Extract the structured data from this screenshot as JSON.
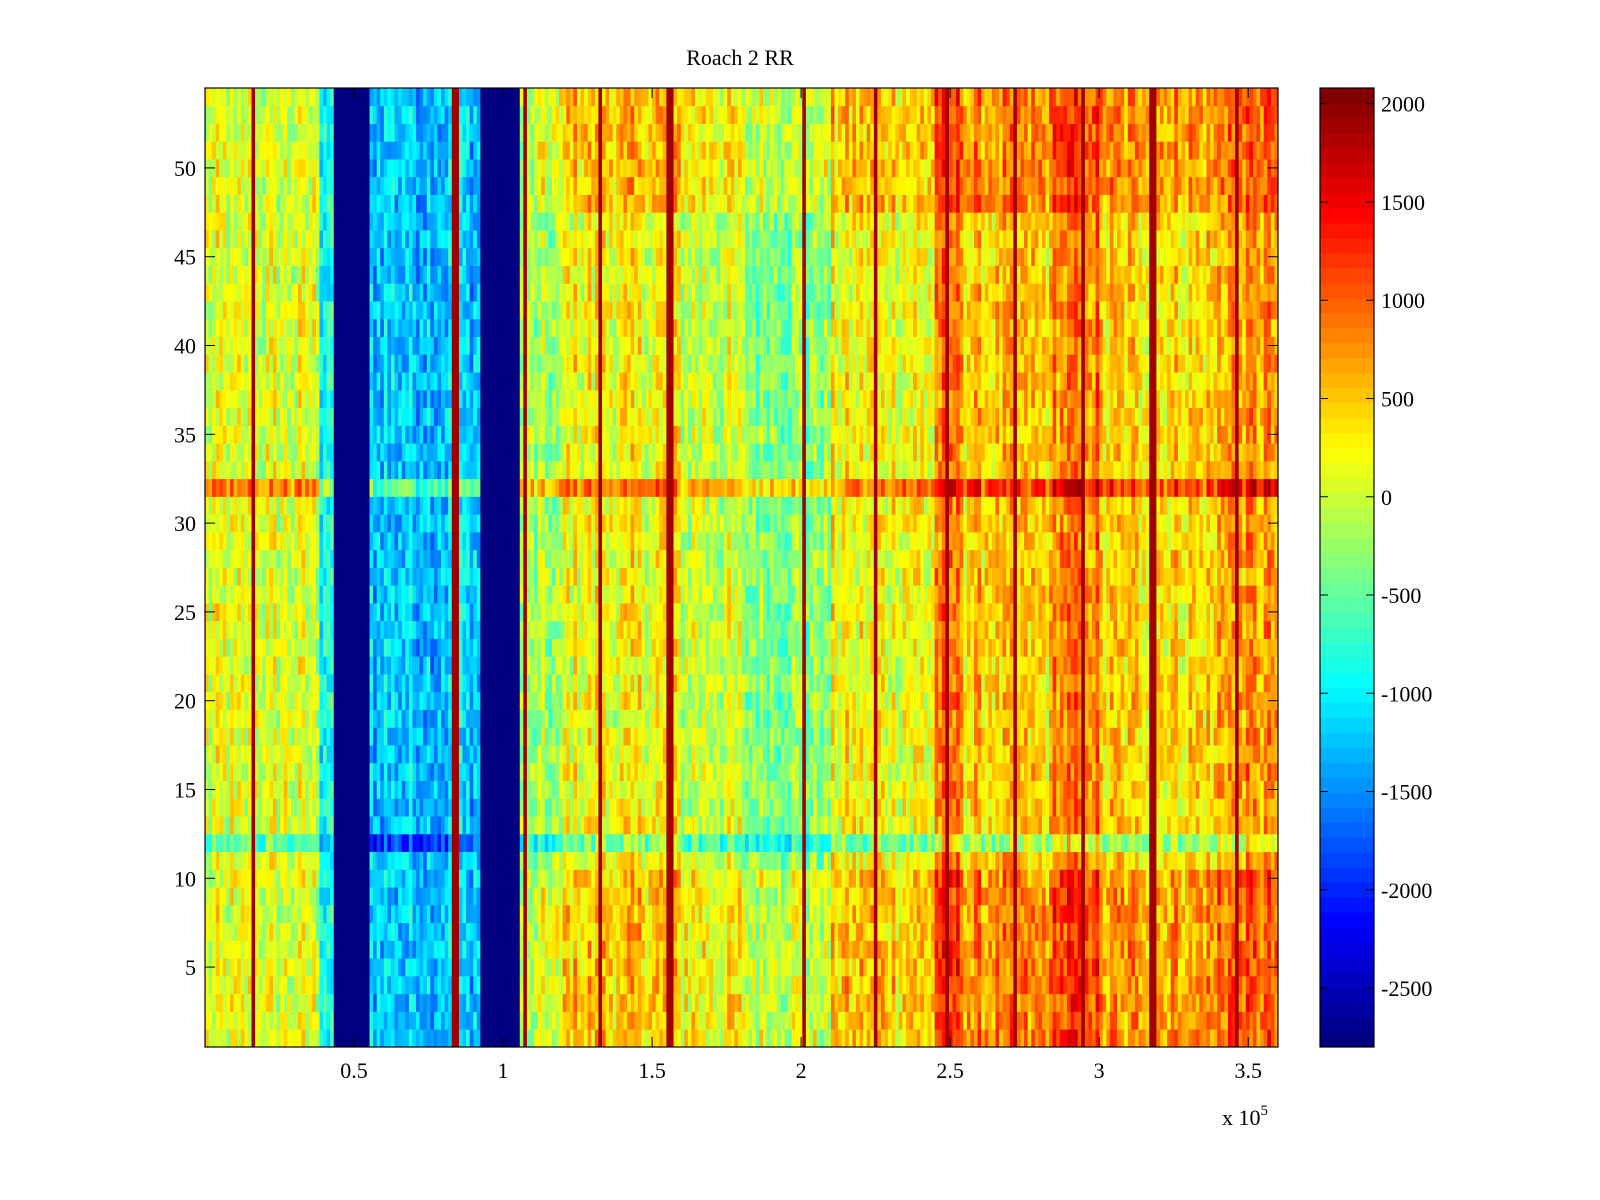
{
  "chart_data": {
    "type": "heatmap",
    "title": "Roach 2 RR",
    "xlabel": "",
    "ylabel": "",
    "x_exponent_label": "x 10",
    "x_exponent": "5",
    "xlim": [
      0,
      3.6
    ],
    "ylim": [
      0.5,
      54.5
    ],
    "rows": 54,
    "x_ticks": [
      0.5,
      1,
      1.5,
      2,
      2.5,
      3,
      3.5
    ],
    "x_tick_labels": [
      "0.5",
      "1",
      "1.5",
      "2",
      "2.5",
      "3",
      "3.5"
    ],
    "y_ticks": [
      5,
      10,
      15,
      20,
      25,
      30,
      35,
      40,
      45,
      50
    ],
    "y_tick_labels": [
      "5",
      "10",
      "15",
      "20",
      "25",
      "30",
      "35",
      "40",
      "45",
      "50"
    ],
    "clim": [
      -2800,
      2080
    ],
    "colorbar_ticks": [
      2000,
      1500,
      1000,
      500,
      0,
      -500,
      -1000,
      -1500,
      -2000,
      -2500
    ],
    "colorbar_tick_labels": [
      "2000",
      "1500",
      "1000",
      "500",
      "0",
      "-500",
      "-1000",
      "-1500",
      "-2000",
      "-2500"
    ],
    "colormap": "jet",
    "column_profile": [
      {
        "x_from": 0.0,
        "x_to": 0.38,
        "mean": 50
      },
      {
        "x_from": 0.38,
        "x_to": 0.43,
        "mean": -800
      },
      {
        "x_from": 0.43,
        "x_to": 0.55,
        "mean": -2800,
        "constant": true
      },
      {
        "x_from": 0.55,
        "x_to": 0.93,
        "mean": -1200
      },
      {
        "x_from": 0.93,
        "x_to": 1.06,
        "mean": -2800,
        "constant": true
      },
      {
        "x_from": 1.06,
        "x_to": 1.2,
        "mean": -250
      },
      {
        "x_from": 1.2,
        "x_to": 1.6,
        "mean": 200
      },
      {
        "x_from": 1.6,
        "x_to": 1.8,
        "mean": 0
      },
      {
        "x_from": 1.8,
        "x_to": 2.1,
        "mean": -300
      },
      {
        "x_from": 2.1,
        "x_to": 2.45,
        "mean": 200
      },
      {
        "x_from": 2.45,
        "x_to": 2.55,
        "mean": 850
      },
      {
        "x_from": 2.55,
        "x_to": 2.85,
        "mean": 450
      },
      {
        "x_from": 2.85,
        "x_to": 3.0,
        "mean": 850
      },
      {
        "x_from": 3.0,
        "x_to": 3.4,
        "mean": 400
      },
      {
        "x_from": 3.4,
        "x_to": 3.6,
        "mean": 700
      }
    ],
    "high_value_lines_x": [
      0.16,
      0.84,
      1.07,
      1.33,
      1.56,
      2.01,
      2.25,
      2.49,
      2.72,
      2.95,
      3.18,
      3.46
    ],
    "high_value_line_level": 1900,
    "row_offsets": [
      {
        "row": 32,
        "offset": 700
      },
      {
        "row": 12,
        "offset": -600
      }
    ],
    "edge_rows_boost": {
      "rows_below": 11,
      "rows_above": 47,
      "offset": 300,
      "x_from": 1.1
    },
    "noise_amplitude": 500
  }
}
